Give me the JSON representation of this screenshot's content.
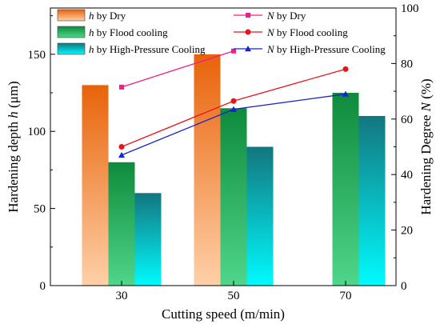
{
  "chart_data": {
    "type": "bar",
    "categories": [
      "30",
      "50",
      "70"
    ],
    "xlabel": "Cutting speed (m/min)",
    "ylabel_left": {
      "italic": "h",
      "pre": "Hardening depth ",
      "post": " (μm)"
    },
    "ylabel_right": {
      "italic": "N",
      "pre": "Hardening Degree ",
      "post": " (%)"
    },
    "y_left": {
      "lim": [
        0,
        180
      ],
      "ticks": [
        0,
        50,
        100,
        150
      ]
    },
    "y_right": {
      "lim": [
        0,
        100
      ],
      "ticks": [
        0,
        20,
        40,
        60,
        80,
        100
      ]
    },
    "bar_series": [
      {
        "var": "h",
        "name": " by Dry",
        "values": [
          130,
          150,
          null
        ],
        "color_top": "#e8630a",
        "color_bottom": "#ffd0a8"
      },
      {
        "var": "h",
        "name": " by Flood cooling",
        "values": [
          80,
          115,
          125
        ],
        "color_top": "#0f8a3c",
        "color_bottom": "#4fd68a"
      },
      {
        "var": "h",
        "name": " by High-Pressure Cooling",
        "values": [
          60,
          90,
          110
        ],
        "color_top": "#13767e",
        "color_bottom": "#00fbff"
      }
    ],
    "line_series": [
      {
        "var": "N",
        "name": " by Dry",
        "x": [
          "30",
          "50"
        ],
        "values": [
          71.5,
          84.5
        ],
        "color": "#ee1f8b",
        "marker": "square"
      },
      {
        "var": "N",
        "name": " by Flood cooling",
        "x": [
          "30",
          "50",
          "70"
        ],
        "values": [
          50,
          66.5,
          78
        ],
        "color": "#e8141c",
        "marker": "circle"
      },
      {
        "var": "N",
        "name": " by High-Pressure Cooling",
        "x": [
          "30",
          "50",
          "70"
        ],
        "values": [
          47,
          63.5,
          69
        ],
        "color": "#1b22c9",
        "marker": "triangle"
      }
    ],
    "legend": "top"
  }
}
